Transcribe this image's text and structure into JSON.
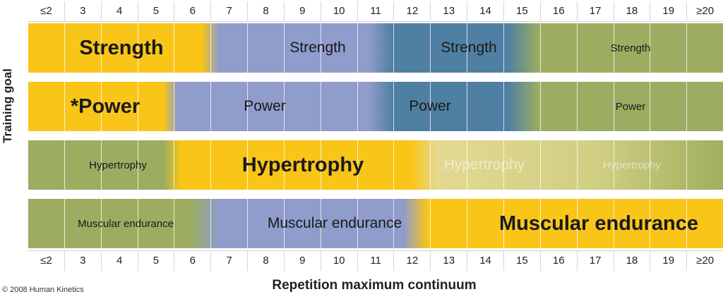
{
  "rm_labels": [
    "≤2",
    "3",
    "4",
    "5",
    "6",
    "7",
    "8",
    "9",
    "10",
    "11",
    "12",
    "13",
    "14",
    "15",
    "16",
    "17",
    "18",
    "19",
    "≥20"
  ],
  "y_axis_title": "Training goal",
  "x_axis_title": "Repetition maximum continuum",
  "copyright": "© 2008 Human Kinetics",
  "rows": {
    "strength": [
      "Strength",
      "Strength",
      "Strength",
      "Strength"
    ],
    "power": [
      "*Power",
      "Power",
      "Power",
      "Power"
    ],
    "hypertrophy": [
      "Hypertrophy",
      "Hypertrophy",
      "Hypertrophy",
      "Hypertrophy"
    ],
    "endurance": [
      "Muscular endurance",
      "Muscular endurance",
      "Muscular endurance"
    ]
  },
  "zone_colors": {
    "yellow": "#f9c519",
    "lavender": "#8f9ccc",
    "steel_blue": "#4f7fa3",
    "olive_green": "#9cad62"
  }
}
